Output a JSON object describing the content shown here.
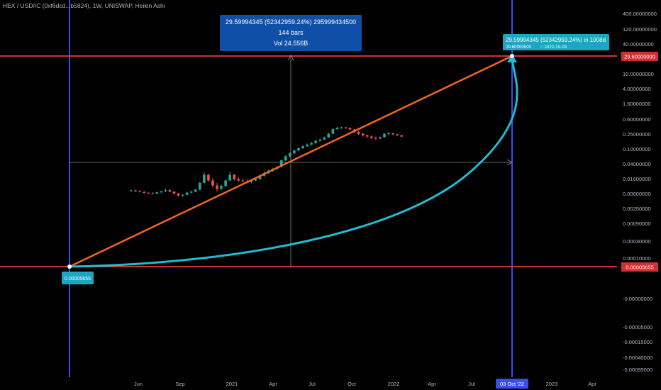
{
  "symbol_title": "HEX / USD//C (0xf6dcd...b5824), 1W, UNISWAP, Heikin Ashi",
  "measure_tooltip": {
    "line1": "29.59994345 (52342959.24%) 295999434500",
    "line2": "144 bars",
    "line3": "Vol 24.556B"
  },
  "target_label": {
    "line1": "29.59994345 (52342959.24%) in 1008d",
    "line2_price": "29.60000000",
    "line2_date": "2022-10-03"
  },
  "start_label": "0.00005655",
  "highlighted_prices": {
    "upper": "29.60000000",
    "lower": "0.00005655"
  },
  "date_highlight": "03 Oct '22",
  "colors": {
    "up": "#26a69a",
    "down": "#ef5350",
    "trend": "#f26522",
    "curve": "#1fbcd2",
    "vline": "#3b4cf0",
    "hline": "#d32f2f",
    "tooltip_bg": "#0f4fa8",
    "label_bg": "#1aa7c4"
  },
  "chart_data": {
    "type": "candlestick",
    "title": "HEX / USD//C (0xf6dcd...b5824), 1W, UNISWAP, Heikin Ashi",
    "y_scale": "log",
    "y_tick_labels": [
      "400.00000000",
      "120.00000000",
      "40.00000000",
      "10.00000000",
      "4.00000000",
      "1.60000000",
      "0.60000000",
      "0.25000000",
      "0.10000000",
      "0.04000000",
      "0.01600000",
      "0.00600000",
      "0.00250000",
      "0.00090000",
      "0.00030000",
      "0.00010000",
      "0.00005655",
      "-0.00000000",
      "-0.00005000",
      "-0.00015000",
      "-0.00040000",
      "-0.00095000"
    ],
    "x_tick_labels": [
      "Jun",
      "Sep",
      "2021",
      "Apr",
      "Jul",
      "Oct",
      "2022",
      "Apr",
      "Jul",
      "03 Oct '22",
      "2023",
      "Apr"
    ],
    "series": [
      {
        "name": "HEX / USD//C",
        "candles_ohlc_approx": [
          [
            0.0048,
            0.0052,
            0.0045,
            0.0049
          ],
          [
            0.0049,
            0.0051,
            0.0044,
            0.0046
          ],
          [
            0.0046,
            0.005,
            0.0043,
            0.0044
          ],
          [
            0.0044,
            0.0047,
            0.004,
            0.0041
          ],
          [
            0.0041,
            0.0044,
            0.0039,
            0.004
          ],
          [
            0.004,
            0.0043,
            0.0037,
            0.0039
          ],
          [
            0.0039,
            0.0045,
            0.0038,
            0.0043
          ],
          [
            0.0043,
            0.0048,
            0.0041,
            0.0046
          ],
          [
            0.0046,
            0.0056,
            0.0044,
            0.005
          ],
          [
            0.005,
            0.0054,
            0.0043,
            0.0045
          ],
          [
            0.0045,
            0.0047,
            0.0038,
            0.0039
          ],
          [
            0.0039,
            0.0041,
            0.0032,
            0.0034
          ],
          [
            0.0034,
            0.0038,
            0.0031,
            0.0036
          ],
          [
            0.0036,
            0.0045,
            0.0034,
            0.0042
          ],
          [
            0.0042,
            0.0048,
            0.0039,
            0.0045
          ],
          [
            0.0045,
            0.0055,
            0.0043,
            0.0052
          ],
          [
            0.0052,
            0.009,
            0.005,
            0.0085
          ],
          [
            0.0085,
            0.018,
            0.008,
            0.015
          ],
          [
            0.015,
            0.016,
            0.009,
            0.01
          ],
          [
            0.01,
            0.012,
            0.006,
            0.007
          ],
          [
            0.007,
            0.0085,
            0.0045,
            0.0055
          ],
          [
            0.0055,
            0.0075,
            0.005,
            0.0068
          ],
          [
            0.0068,
            0.011,
            0.0062,
            0.01
          ],
          [
            0.01,
            0.019,
            0.0095,
            0.015
          ],
          [
            0.015,
            0.016,
            0.01,
            0.011
          ],
          [
            0.011,
            0.013,
            0.009,
            0.01
          ],
          [
            0.01,
            0.0115,
            0.0085,
            0.0095
          ],
          [
            0.0095,
            0.011,
            0.008,
            0.009
          ],
          [
            0.009,
            0.0105,
            0.0082,
            0.01
          ],
          [
            0.01,
            0.012,
            0.0095,
            0.011
          ],
          [
            0.011,
            0.015,
            0.0105,
            0.014
          ],
          [
            0.014,
            0.019,
            0.013,
            0.017
          ],
          [
            0.017,
            0.022,
            0.016,
            0.02
          ],
          [
            0.02,
            0.025,
            0.018,
            0.023
          ],
          [
            0.023,
            0.028,
            0.021,
            0.026
          ],
          [
            0.026,
            0.045,
            0.025,
            0.042
          ],
          [
            0.042,
            0.06,
            0.04,
            0.056
          ],
          [
            0.056,
            0.075,
            0.05,
            0.07
          ],
          [
            0.07,
            0.09,
            0.065,
            0.085
          ],
          [
            0.085,
            0.105,
            0.08,
            0.1
          ],
          [
            0.1,
            0.125,
            0.095,
            0.115
          ],
          [
            0.115,
            0.14,
            0.11,
            0.13
          ],
          [
            0.13,
            0.155,
            0.12,
            0.145
          ],
          [
            0.145,
            0.18,
            0.135,
            0.17
          ],
          [
            0.17,
            0.2,
            0.16,
            0.185
          ],
          [
            0.185,
            0.23,
            0.18,
            0.215
          ],
          [
            0.215,
            0.3,
            0.21,
            0.28
          ],
          [
            0.28,
            0.42,
            0.27,
            0.39
          ],
          [
            0.39,
            0.46,
            0.37,
            0.43
          ],
          [
            0.43,
            0.47,
            0.4,
            0.44
          ],
          [
            0.44,
            0.46,
            0.4,
            0.42
          ],
          [
            0.42,
            0.44,
            0.36,
            0.38
          ],
          [
            0.38,
            0.4,
            0.3,
            0.32
          ],
          [
            0.32,
            0.34,
            0.26,
            0.28
          ],
          [
            0.28,
            0.3,
            0.23,
            0.25
          ],
          [
            0.25,
            0.27,
            0.21,
            0.23
          ],
          [
            0.23,
            0.25,
            0.19,
            0.21
          ],
          [
            0.21,
            0.23,
            0.18,
            0.2
          ],
          [
            0.2,
            0.23,
            0.19,
            0.22
          ],
          [
            0.22,
            0.3,
            0.21,
            0.28
          ],
          [
            0.28,
            0.32,
            0.25,
            0.29
          ],
          [
            0.29,
            0.3,
            0.25,
            0.27
          ],
          [
            0.27,
            0.28,
            0.24,
            0.25
          ],
          [
            0.25,
            0.26,
            0.22,
            0.23
          ]
        ]
      }
    ]
  }
}
